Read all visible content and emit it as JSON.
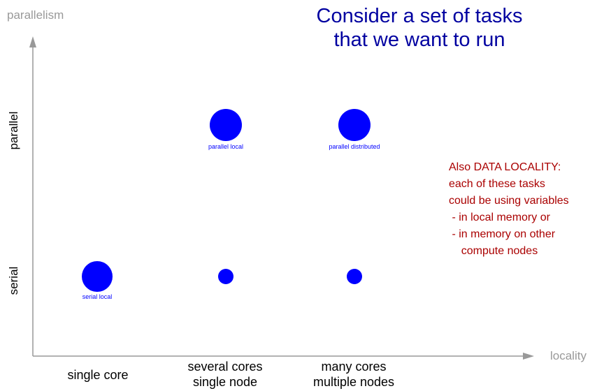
{
  "title": {
    "line1": "Consider a set of tasks",
    "line2": "that we want to run"
  },
  "axes": {
    "y_name": "parallelism",
    "x_name": "locality",
    "rows": [
      "parallel",
      "serial"
    ],
    "columns": [
      {
        "line1": "single core",
        "line2": ""
      },
      {
        "line1": "several cores",
        "line2": "single node"
      },
      {
        "line1": "many cores",
        "line2": "multiple nodes"
      }
    ]
  },
  "points": [
    {
      "label": "serial local",
      "row": "serial",
      "column": "single core",
      "size": "large"
    },
    {
      "label": "",
      "row": "serial",
      "column": "several cores",
      "size": "small"
    },
    {
      "label": "",
      "row": "serial",
      "column": "many cores",
      "size": "small"
    },
    {
      "label": "parallel local",
      "row": "parallel",
      "column": "several cores",
      "size": "large"
    },
    {
      "label": "parallel distributed",
      "row": "parallel",
      "column": "many cores",
      "size": "large"
    }
  ],
  "note": {
    "lines": [
      "Also DATA LOCALITY:",
      "each of these tasks",
      "could be using variables",
      " - in local memory or",
      " - in memory on other",
      "    compute nodes"
    ]
  },
  "colors": {
    "title": "#0000a0",
    "dot": "#0000ff",
    "note": "#aa0000",
    "axis": "#999999"
  }
}
